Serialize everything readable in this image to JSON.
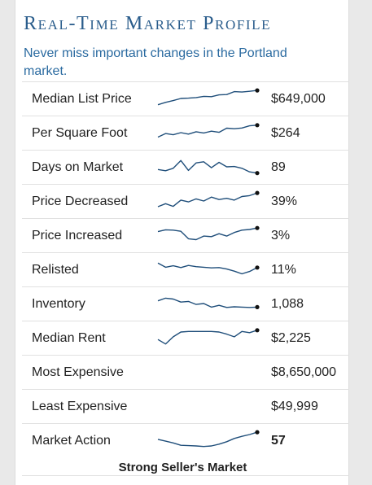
{
  "header": {
    "title": "Real-Time Market Profile",
    "subtitle": "Never miss important changes in the Portland market."
  },
  "colors": {
    "title": "#2a5d8c",
    "subtitle": "#2a6aa0",
    "sparkline": "#1f4e7a"
  },
  "metrics": [
    {
      "label": "Median List Price",
      "value": "$649,000",
      "bold": false,
      "spark": [
        0.15,
        0.28,
        0.38,
        0.5,
        0.52,
        0.55,
        0.62,
        0.6,
        0.7,
        0.72,
        0.88,
        0.86,
        0.9,
        0.95
      ]
    },
    {
      "label": "Per Square Foot",
      "value": "$264",
      "bold": false,
      "spark": [
        0.25,
        0.45,
        0.38,
        0.5,
        0.42,
        0.55,
        0.48,
        0.58,
        0.52,
        0.75,
        0.72,
        0.76,
        0.88,
        0.92
      ]
    },
    {
      "label": "Days on Market",
      "value": "89",
      "bold": false,
      "spark": [
        0.35,
        0.28,
        0.42,
        0.85,
        0.3,
        0.72,
        0.78,
        0.45,
        0.75,
        0.5,
        0.52,
        0.42,
        0.22,
        0.15
      ]
    },
    {
      "label": "Price Decreased",
      "value": "39%",
      "bold": false,
      "spark": [
        0.18,
        0.35,
        0.2,
        0.55,
        0.45,
        0.62,
        0.5,
        0.72,
        0.58,
        0.65,
        0.55,
        0.75,
        0.8,
        0.95
      ]
    },
    {
      "label": "Price Increased",
      "value": "3%",
      "bold": false,
      "spark": [
        0.7,
        0.8,
        0.78,
        0.72,
        0.3,
        0.25,
        0.45,
        0.42,
        0.58,
        0.45,
        0.65,
        0.78,
        0.82,
        0.9
      ]
    },
    {
      "label": "Relisted",
      "value": "11%",
      "bold": false,
      "spark": [
        0.85,
        0.62,
        0.7,
        0.6,
        0.72,
        0.65,
        0.62,
        0.58,
        0.6,
        0.52,
        0.4,
        0.25,
        0.38,
        0.6
      ]
    },
    {
      "label": "Inventory",
      "value": "1,088",
      "bold": false,
      "spark": [
        0.65,
        0.8,
        0.75,
        0.58,
        0.62,
        0.45,
        0.5,
        0.3,
        0.4,
        0.28,
        0.32,
        0.3,
        0.28,
        0.3
      ]
    },
    {
      "label": "Median Rent",
      "value": "$2,225",
      "bold": false,
      "spark": [
        0.4,
        0.15,
        0.55,
        0.82,
        0.85,
        0.85,
        0.85,
        0.85,
        0.82,
        0.7,
        0.55,
        0.85,
        0.78,
        0.92
      ]
    },
    {
      "label": "Most Expensive",
      "value": "$8,650,000",
      "bold": false,
      "spark": []
    },
    {
      "label": "Least Expensive",
      "value": "$49,999",
      "bold": false,
      "spark": []
    },
    {
      "label": "Market Action",
      "value": "57",
      "bold": true,
      "spark": [
        0.55,
        0.45,
        0.35,
        0.22,
        0.2,
        0.18,
        0.15,
        0.18,
        0.28,
        0.42,
        0.6,
        0.72,
        0.82,
        0.95
      ]
    }
  ],
  "market_status": "Strong Seller's Market"
}
